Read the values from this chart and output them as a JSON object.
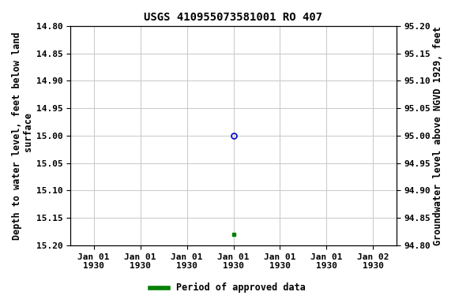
{
  "title": "USGS 410955073581001 RO 407",
  "ylabel_left": "Depth to water level, feet below land\n surface",
  "ylabel_right": "Groundwater level above NGVD 1929, feet",
  "ylim_left": [
    15.2,
    14.8
  ],
  "ylim_right": [
    94.8,
    95.2
  ],
  "yticks_left": [
    14.8,
    14.85,
    14.9,
    14.95,
    15.0,
    15.05,
    15.1,
    15.15,
    15.2
  ],
  "yticks_right": [
    95.2,
    95.15,
    95.1,
    95.05,
    95.0,
    94.95,
    94.9,
    94.85,
    94.8
  ],
  "data_point_blue": {
    "tick_index": 3,
    "value": 15.0
  },
  "data_point_green": {
    "tick_index": 3,
    "value": 15.18
  },
  "num_ticks": 7,
  "x_tick_labels": [
    "Jan 01\n1930",
    "Jan 01\n1930",
    "Jan 01\n1930",
    "Jan 01\n1930",
    "Jan 01\n1930",
    "Jan 01\n1930",
    "Jan 02\n1930"
  ],
  "background_color": "#ffffff",
  "grid_color": "#cccccc",
  "blue_marker_color": "#0000cc",
  "green_marker_color": "#008000",
  "legend_label": "Period of approved data",
  "title_fontsize": 10,
  "axis_fontsize": 8.5,
  "tick_fontsize": 8,
  "font_family": "monospace"
}
